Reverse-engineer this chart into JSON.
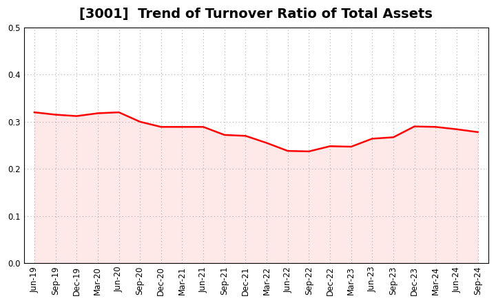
{
  "title": "[3001]  Trend of Turnover Ratio of Total Assets",
  "x_labels": [
    "Jun-19",
    "Sep-19",
    "Dec-19",
    "Mar-20",
    "Jun-20",
    "Sep-20",
    "Dec-20",
    "Mar-21",
    "Jun-21",
    "Sep-21",
    "Dec-21",
    "Mar-22",
    "Jun-22",
    "Sep-22",
    "Dec-22",
    "Mar-23",
    "Jun-23",
    "Sep-23",
    "Dec-23",
    "Mar-24",
    "Jun-24",
    "Sep-24"
  ],
  "values": [
    0.32,
    0.315,
    0.312,
    0.318,
    0.32,
    0.3,
    0.289,
    0.289,
    0.289,
    0.272,
    0.27,
    0.255,
    0.238,
    0.237,
    0.248,
    0.247,
    0.264,
    0.267,
    0.29,
    0.289,
    0.284,
    0.278
  ],
  "line_color": "#FF0000",
  "fill_color": "#FFCCCC",
  "fill_alpha": 0.45,
  "line_width": 1.8,
  "ylim": [
    0.0,
    0.5
  ],
  "yticks": [
    0.0,
    0.1,
    0.2,
    0.3,
    0.4,
    0.5
  ],
  "grid_color": "#aaaaaa",
  "background_color": "#ffffff",
  "title_fontsize": 14,
  "tick_fontsize": 8.5
}
